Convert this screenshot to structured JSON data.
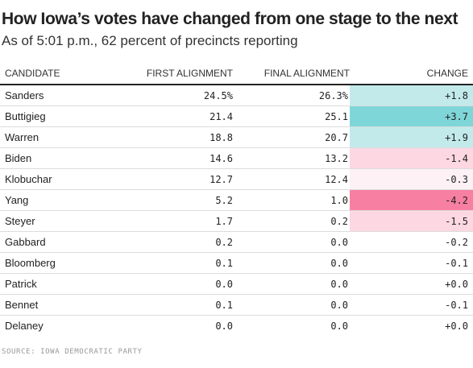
{
  "title": "How Iowa’s votes have changed from one stage to the next",
  "subtitle": "As of 5:01 p.m., 62 percent of precincts reporting",
  "source": "SOURCE: IOWA DEMOCRATIC PARTY",
  "colors": {
    "positive_strong": "#7fd6d8",
    "positive_light": "#c2eaeb",
    "negative_strong": "#f77fa2",
    "negative_light": "#fdd7e2",
    "negative_faint": "#fdf1f5",
    "neutral": "#ffffff"
  },
  "chart_data": {
    "type": "table",
    "columns": [
      "CANDIDATE",
      "FIRST ALIGNMENT",
      "FINAL ALIGNMENT",
      "CHANGE"
    ],
    "rows": [
      {
        "candidate": "Sanders",
        "first": "24.5%",
        "final": "26.3%",
        "change": "+1.8",
        "change_value": 1.8
      },
      {
        "candidate": "Buttigieg",
        "first": "21.4",
        "final": "25.1",
        "change": "+3.7",
        "change_value": 3.7
      },
      {
        "candidate": "Warren",
        "first": "18.8",
        "final": "20.7",
        "change": "+1.9",
        "change_value": 1.9
      },
      {
        "candidate": "Biden",
        "first": "14.6",
        "final": "13.2",
        "change": "-1.4",
        "change_value": -1.4
      },
      {
        "candidate": "Klobuchar",
        "first": "12.7",
        "final": "12.4",
        "change": "-0.3",
        "change_value": -0.3
      },
      {
        "candidate": "Yang",
        "first": "5.2",
        "final": "1.0",
        "change": "-4.2",
        "change_value": -4.2
      },
      {
        "candidate": "Steyer",
        "first": "1.7",
        "final": "0.2",
        "change": "-1.5",
        "change_value": -1.5
      },
      {
        "candidate": "Gabbard",
        "first": "0.2",
        "final": "0.0",
        "change": "-0.2",
        "change_value": -0.2
      },
      {
        "candidate": "Bloomberg",
        "first": "0.1",
        "final": "0.0",
        "change": "-0.1",
        "change_value": -0.1
      },
      {
        "candidate": "Patrick",
        "first": "0.0",
        "final": "0.0",
        "change": "+0.0",
        "change_value": 0.0
      },
      {
        "candidate": "Bennet",
        "first": "0.1",
        "final": "0.0",
        "change": "-0.1",
        "change_value": -0.1
      },
      {
        "candidate": "Delaney",
        "first": "0.0",
        "final": "0.0",
        "change": "+0.0",
        "change_value": 0.0
      }
    ]
  }
}
